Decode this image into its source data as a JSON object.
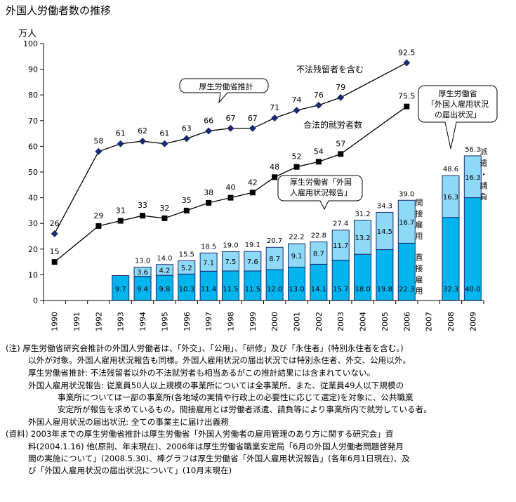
{
  "title": "外国人労働者数の推移",
  "chart_data": {
    "type": "bar+line",
    "title": "外国人労働者数の推移",
    "ylabel": "万人",
    "ylim": [
      0,
      100
    ],
    "yticks": [
      0,
      10,
      20,
      30,
      40,
      50,
      60,
      70,
      80,
      90,
      100
    ],
    "categories": [
      "1990",
      "1991",
      "1992",
      "1993",
      "1994",
      "1995",
      "1996",
      "1997",
      "1998",
      "1999",
      "2000",
      "2001",
      "2002",
      "2003",
      "2004",
      "2005",
      "2006",
      "2007",
      "2008",
      "2009"
    ],
    "lines": [
      {
        "name": "不法残留者を含む",
        "marker": "diamond",
        "points": [
          [
            1990,
            26
          ],
          [
            1992,
            58
          ],
          [
            1993,
            61
          ],
          [
            1994,
            62
          ],
          [
            1995,
            61
          ],
          [
            1996,
            63
          ],
          [
            1997,
            66
          ],
          [
            1998,
            67
          ],
          [
            1999,
            67
          ],
          [
            2000,
            71
          ],
          [
            2001,
            74
          ],
          [
            2002,
            76
          ],
          [
            2003,
            79
          ],
          [
            2006,
            92.5
          ]
        ],
        "labels": [
          "26",
          "58",
          "61",
          "62",
          "61",
          "63",
          "66",
          "67",
          "67",
          "71",
          "74",
          "76",
          "79",
          "92.5"
        ]
      },
      {
        "name": "合法的就労者数",
        "marker": "square",
        "points": [
          [
            1990,
            15
          ],
          [
            1992,
            29
          ],
          [
            1993,
            31
          ],
          [
            1994,
            33
          ],
          [
            1995,
            32
          ],
          [
            1996,
            35
          ],
          [
            1997,
            38
          ],
          [
            1998,
            40
          ],
          [
            1999,
            42
          ],
          [
            2000,
            48
          ],
          [
            2001,
            52
          ],
          [
            2002,
            54
          ],
          [
            2003,
            57
          ],
          [
            2006,
            75.5
          ]
        ],
        "labels": [
          "15",
          "29",
          "31",
          "33",
          "32",
          "35",
          "38",
          "40",
          "42",
          "48",
          "52",
          "54",
          "57",
          "75.5"
        ]
      }
    ],
    "bars": [
      {
        "year": 1993,
        "direct": 9.7,
        "indirect": null,
        "total": null,
        "direct_label": "9.7",
        "indirect_label": "",
        "total_label": ""
      },
      {
        "year": 1994,
        "direct": 9.4,
        "indirect": 3.6,
        "total": 13.0,
        "direct_label": "9.4",
        "indirect_label": "3.6",
        "total_label": "13.0"
      },
      {
        "year": 1995,
        "direct": 9.8,
        "indirect": 4.2,
        "total": 14.0,
        "direct_label": "9.8",
        "indirect_label": "4.2",
        "total_label": "14.0"
      },
      {
        "year": 1996,
        "direct": 10.3,
        "indirect": 5.2,
        "total": 15.5,
        "direct_label": "10.3",
        "indirect_label": "5.2",
        "total_label": "15.5"
      },
      {
        "year": 1997,
        "direct": 11.4,
        "indirect": 7.1,
        "total": 18.5,
        "direct_label": "11.4",
        "indirect_label": "7.1",
        "total_label": "18.5"
      },
      {
        "year": 1998,
        "direct": 11.5,
        "indirect": 7.5,
        "total": 19.0,
        "direct_label": "11.5",
        "indirect_label": "7.5",
        "total_label": "19.0"
      },
      {
        "year": 1999,
        "direct": 11.5,
        "indirect": 7.6,
        "total": 19.1,
        "direct_label": "11.5",
        "indirect_label": "7.6",
        "total_label": "19.1"
      },
      {
        "year": 2000,
        "direct": 12.0,
        "indirect": 8.7,
        "total": 20.7,
        "direct_label": "12.0",
        "indirect_label": "8.7",
        "total_label": "20.7"
      },
      {
        "year": 2001,
        "direct": 13.0,
        "indirect": 9.1,
        "total": 22.2,
        "direct_label": "13.0",
        "indirect_label": "9.1",
        "total_label": "22.2"
      },
      {
        "year": 2002,
        "direct": 14.1,
        "indirect": 8.7,
        "total": 22.8,
        "direct_label": "14.1",
        "indirect_label": "8.7",
        "total_label": "22.8"
      },
      {
        "year": 2003,
        "direct": 15.7,
        "indirect": 11.7,
        "total": 27.4,
        "direct_label": "15.7",
        "indirect_label": "11.7",
        "total_label": "27.4"
      },
      {
        "year": 2004,
        "direct": 18.0,
        "indirect": 13.2,
        "total": 31.2,
        "direct_label": "18.0",
        "indirect_label": "13.2",
        "total_label": "31.2"
      },
      {
        "year": 2005,
        "direct": 19.8,
        "indirect": 14.5,
        "total": 34.3,
        "direct_label": "19.8",
        "indirect_label": "14.5",
        "total_label": "34.3"
      },
      {
        "year": 2006,
        "direct": 22.3,
        "indirect": 16.7,
        "total": 39.0,
        "direct_label": "22.3",
        "indirect_label": "16.7",
        "total_label": "39.0"
      },
      {
        "year": 2008,
        "direct": 32.3,
        "indirect": 16.3,
        "total": 48.6,
        "direct_label": "32.3",
        "indirect_label": "16.3",
        "total_label": "48.6"
      },
      {
        "year": 2009,
        "direct": 40.0,
        "indirect": 16.3,
        "total": 56.3,
        "direct_label": "40.0",
        "indirect_label": "16.3",
        "total_label": "56.3"
      }
    ],
    "annotations": {
      "line1_label": "不法残留者を含む",
      "line2_label": "合法的就労者数",
      "callout1": "厚生労働省推計",
      "callout2_line1": "厚生労働省「外国",
      "callout2_line2": "人雇用状況報告」",
      "callout3_line1": "厚生労働省",
      "callout3_line2": "「外国人雇用状況",
      "callout3_line3": "の届出状況」",
      "indirect_label": "間接雇用",
      "direct_label": "直接雇用",
      "dispatch_label": "派遣・請負"
    },
    "colors": {
      "direct": "#00B4EE",
      "indirect": "#8ED8F8",
      "line": "#000000"
    }
  },
  "notes": [
    "(注) 厚生労働省研究会推計の外国人労働者は、「外交」、「公用」、「研修」及び「永住者」(特別永住者を含む。)",
    "以外が対象。外国人雇用状況報告も同様。外国人雇用状況の届出状況では特別永住者、外交、公用以外。",
    "厚生労働省推計: 不法残留者以外の不法就労者も相当あるがこの推計結果には含まれていない。",
    "外国人雇用状況報告: 従業員50人以上規模の事業所については全事業所、また、従業員49人以下規模の",
    "事業所については一部の事業所(各地域の実情や行政上の必要性に応じて選定)を対象に、公共職業",
    "安定所が報告を求めているもの。間接雇用とは労働者派遣、請負等により事業所内で就労している者。",
    "外国人雇用状況の届出状況: 全ての事業主に届け出義務",
    "(資料) 2003年までの厚生労働省推計は厚生労働省「外国人労働者の雇用管理のあり方に関する研究会」資",
    "料(2004.1.16) 他(原則、年末現在)、2006年は厚生労働省職業安定局「6月の外国人労働者問題啓発月",
    "間の実施について」(2008.5.30)、棒グラフは厚生労働省「外国人雇用状況報告」(各年6月1日現在)、及",
    "び「外国人雇用状況の届出状況について」(10月末現在)"
  ]
}
